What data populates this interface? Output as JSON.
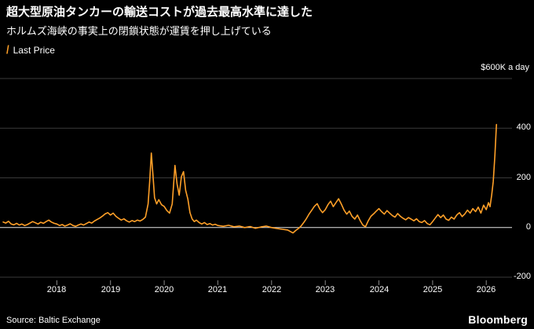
{
  "header": {
    "title": "超大型原油タンカーの輸送コストが過去最高水準に達した",
    "subtitle": "ホルムズ海峡の事実上の閉鎖状態が運賃を押し上げている"
  },
  "legend": {
    "marker": "/",
    "label": "Last Price"
  },
  "axes": {
    "y_unit_label": "$600K a day"
  },
  "footer": {
    "source": "Source: Baltic Exchange",
    "brand": "Bloomberg"
  },
  "colors": {
    "background": "#000000",
    "line": "#ffa028",
    "grid": "#3a3a3a",
    "zero_line": "#e6e6e6",
    "tick": "#888888",
    "text": "#ffffff"
  },
  "chart_data": {
    "type": "line",
    "title": "超大型原油タンカーの輸送コストが過去最高水準に達した",
    "subtitle": "ホルムズ海峡の事実上の閉鎖状態が運賃を押し上げている",
    "legend_entries": [
      "Last Price"
    ],
    "ylabel": "$K a day",
    "xlabel": "",
    "grid": "horizontal",
    "legend_position": "top-left",
    "xlim": [
      2017.0,
      2026.45
    ],
    "ylim": [
      -200,
      600
    ],
    "x_ticks": [
      2018,
      2019,
      2020,
      2021,
      2022,
      2023,
      2024,
      2025,
      2026
    ],
    "y_ticks": [
      400,
      200,
      0,
      -200
    ],
    "y_gridlines": [
      600,
      400,
      200,
      0,
      -200
    ],
    "series": [
      {
        "name": "Last Price",
        "color": "#ffa028",
        "points": [
          [
            2017.0,
            22
          ],
          [
            2017.05,
            18
          ],
          [
            2017.1,
            25
          ],
          [
            2017.15,
            14
          ],
          [
            2017.2,
            11
          ],
          [
            2017.25,
            17
          ],
          [
            2017.3,
            10
          ],
          [
            2017.35,
            14
          ],
          [
            2017.4,
            8
          ],
          [
            2017.45,
            12
          ],
          [
            2017.5,
            18
          ],
          [
            2017.55,
            24
          ],
          [
            2017.6,
            19
          ],
          [
            2017.65,
            14
          ],
          [
            2017.7,
            21
          ],
          [
            2017.75,
            17
          ],
          [
            2017.8,
            24
          ],
          [
            2017.85,
            30
          ],
          [
            2017.9,
            22
          ],
          [
            2017.95,
            17
          ],
          [
            2018.0,
            14
          ],
          [
            2018.05,
            8
          ],
          [
            2018.1,
            12
          ],
          [
            2018.15,
            6
          ],
          [
            2018.2,
            10
          ],
          [
            2018.25,
            15
          ],
          [
            2018.3,
            8
          ],
          [
            2018.35,
            5
          ],
          [
            2018.4,
            10
          ],
          [
            2018.45,
            14
          ],
          [
            2018.5,
            10
          ],
          [
            2018.55,
            16
          ],
          [
            2018.6,
            22
          ],
          [
            2018.65,
            18
          ],
          [
            2018.7,
            26
          ],
          [
            2018.75,
            32
          ],
          [
            2018.8,
            38
          ],
          [
            2018.85,
            46
          ],
          [
            2018.9,
            55
          ],
          [
            2018.95,
            60
          ],
          [
            2019.0,
            50
          ],
          [
            2019.05,
            58
          ],
          [
            2019.1,
            45
          ],
          [
            2019.15,
            37
          ],
          [
            2019.2,
            30
          ],
          [
            2019.25,
            35
          ],
          [
            2019.3,
            27
          ],
          [
            2019.35,
            22
          ],
          [
            2019.4,
            28
          ],
          [
            2019.45,
            24
          ],
          [
            2019.5,
            30
          ],
          [
            2019.55,
            26
          ],
          [
            2019.6,
            32
          ],
          [
            2019.65,
            42
          ],
          [
            2019.7,
            95
          ],
          [
            2019.73,
            185
          ],
          [
            2019.76,
            300
          ],
          [
            2019.79,
            215
          ],
          [
            2019.82,
            120
          ],
          [
            2019.86,
            95
          ],
          [
            2019.9,
            112
          ],
          [
            2019.95,
            92
          ],
          [
            2020.0,
            85
          ],
          [
            2020.05,
            68
          ],
          [
            2020.1,
            58
          ],
          [
            2020.15,
            95
          ],
          [
            2020.2,
            250
          ],
          [
            2020.24,
            175
          ],
          [
            2020.28,
            130
          ],
          [
            2020.32,
            205
          ],
          [
            2020.36,
            225
          ],
          [
            2020.4,
            150
          ],
          [
            2020.44,
            115
          ],
          [
            2020.48,
            60
          ],
          [
            2020.52,
            35
          ],
          [
            2020.56,
            24
          ],
          [
            2020.6,
            30
          ],
          [
            2020.65,
            20
          ],
          [
            2020.7,
            14
          ],
          [
            2020.75,
            20
          ],
          [
            2020.8,
            12
          ],
          [
            2020.85,
            16
          ],
          [
            2020.9,
            10
          ],
          [
            2020.95,
            13
          ],
          [
            2021.0,
            8
          ],
          [
            2021.1,
            5
          ],
          [
            2021.2,
            9
          ],
          [
            2021.3,
            3
          ],
          [
            2021.4,
            6
          ],
          [
            2021.5,
            0
          ],
          [
            2021.6,
            4
          ],
          [
            2021.7,
            -3
          ],
          [
            2021.8,
            2
          ],
          [
            2021.9,
            6
          ],
          [
            2022.0,
            0
          ],
          [
            2022.1,
            -4
          ],
          [
            2022.2,
            -7
          ],
          [
            2022.3,
            -10
          ],
          [
            2022.4,
            -22
          ],
          [
            2022.45,
            -12
          ],
          [
            2022.5,
            -4
          ],
          [
            2022.55,
            6
          ],
          [
            2022.6,
            20
          ],
          [
            2022.65,
            36
          ],
          [
            2022.7,
            55
          ],
          [
            2022.75,
            70
          ],
          [
            2022.8,
            86
          ],
          [
            2022.85,
            96
          ],
          [
            2022.9,
            74
          ],
          [
            2022.95,
            60
          ],
          [
            2023.0,
            72
          ],
          [
            2023.05,
            92
          ],
          [
            2023.1,
            106
          ],
          [
            2023.15,
            84
          ],
          [
            2023.2,
            100
          ],
          [
            2023.25,
            116
          ],
          [
            2023.3,
            94
          ],
          [
            2023.35,
            70
          ],
          [
            2023.4,
            54
          ],
          [
            2023.45,
            66
          ],
          [
            2023.5,
            45
          ],
          [
            2023.55,
            34
          ],
          [
            2023.6,
            50
          ],
          [
            2023.65,
            28
          ],
          [
            2023.7,
            10
          ],
          [
            2023.75,
            3
          ],
          [
            2023.8,
            26
          ],
          [
            2023.85,
            45
          ],
          [
            2023.9,
            55
          ],
          [
            2023.95,
            66
          ],
          [
            2024.0,
            76
          ],
          [
            2024.05,
            64
          ],
          [
            2024.1,
            54
          ],
          [
            2024.15,
            68
          ],
          [
            2024.2,
            58
          ],
          [
            2024.25,
            48
          ],
          [
            2024.3,
            42
          ],
          [
            2024.35,
            56
          ],
          [
            2024.4,
            45
          ],
          [
            2024.45,
            37
          ],
          [
            2024.5,
            31
          ],
          [
            2024.55,
            40
          ],
          [
            2024.6,
            34
          ],
          [
            2024.65,
            27
          ],
          [
            2024.7,
            35
          ],
          [
            2024.75,
            24
          ],
          [
            2024.8,
            20
          ],
          [
            2024.85,
            28
          ],
          [
            2024.9,
            16
          ],
          [
            2024.95,
            11
          ],
          [
            2025.0,
            24
          ],
          [
            2025.05,
            38
          ],
          [
            2025.1,
            52
          ],
          [
            2025.15,
            40
          ],
          [
            2025.2,
            50
          ],
          [
            2025.25,
            34
          ],
          [
            2025.3,
            29
          ],
          [
            2025.35,
            42
          ],
          [
            2025.4,
            34
          ],
          [
            2025.45,
            50
          ],
          [
            2025.5,
            60
          ],
          [
            2025.55,
            44
          ],
          [
            2025.6,
            55
          ],
          [
            2025.65,
            70
          ],
          [
            2025.7,
            58
          ],
          [
            2025.75,
            76
          ],
          [
            2025.8,
            64
          ],
          [
            2025.85,
            82
          ],
          [
            2025.9,
            58
          ],
          [
            2025.95,
            90
          ],
          [
            2026.0,
            72
          ],
          [
            2026.04,
            100
          ],
          [
            2026.07,
            84
          ],
          [
            2026.1,
            130
          ],
          [
            2026.13,
            185
          ],
          [
            2026.16,
            290
          ],
          [
            2026.19,
            415
          ]
        ]
      }
    ]
  }
}
